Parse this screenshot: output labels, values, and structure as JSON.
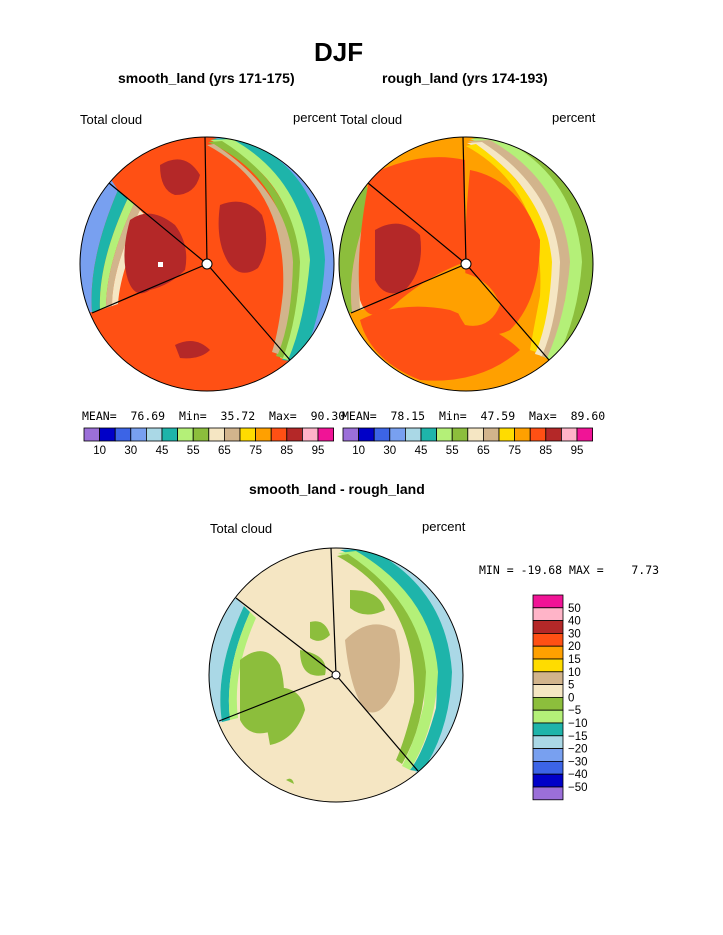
{
  "figure": {
    "title": "DJF",
    "panel_left": {
      "title": "smooth_land (yrs 171-175)",
      "left_label": "Total cloud",
      "right_label": "percent"
    },
    "panel_right": {
      "title": "rough_land (yrs 174-193)",
      "left_label": "Total cloud",
      "right_label": "percent"
    },
    "panel_diff": {
      "title": "smooth_land - rough_land",
      "left_label": "Total cloud",
      "right_label": "percent"
    }
  },
  "chart_data": [
    {
      "type": "heatmap",
      "name_key": "smooth_land",
      "projection": "polar stereographic",
      "stats": {
        "mean_label": "MEAN=",
        "mean": "76.69",
        "min_label": "Min=",
        "min": "35.72",
        "max_label": "Max=",
        "max": "90.30"
      },
      "colorbar": {
        "colors": [
          "#9b6fd9",
          "#0000c8",
          "#3c64e6",
          "#78a0f0",
          "#aad8e6",
          "#1eb4aa",
          "#b4f078",
          "#8cbe3c",
          "#f5e6c3",
          "#d2b48c",
          "#ffdc00",
          "#ffa000",
          "#ff5014",
          "#b42828",
          "#ffb4c8",
          "#f01496"
        ],
        "tick_labels": [
          "10",
          "30",
          "45",
          "55",
          "65",
          "75",
          "85",
          "95"
        ]
      }
    },
    {
      "type": "heatmap",
      "name_key": "rough_land",
      "projection": "polar stereographic",
      "stats": {
        "mean_label": "MEAN=",
        "mean": "78.15",
        "min_label": "Min=",
        "min": "47.59",
        "max_label": "Max=",
        "max": "89.60"
      },
      "colorbar": {
        "colors": [
          "#9b6fd9",
          "#0000c8",
          "#3c64e6",
          "#78a0f0",
          "#aad8e6",
          "#1eb4aa",
          "#b4f078",
          "#8cbe3c",
          "#f5e6c3",
          "#d2b48c",
          "#ffdc00",
          "#ffa000",
          "#ff5014",
          "#b42828",
          "#ffb4c8",
          "#f01496"
        ],
        "tick_labels": [
          "10",
          "30",
          "45",
          "55",
          "65",
          "75",
          "85",
          "95"
        ]
      }
    },
    {
      "type": "heatmap",
      "name_key": "difference",
      "projection": "polar stereographic",
      "stats": {
        "min_label": "MIN =",
        "min": "-19.68",
        "max_label": "MAX =",
        "max": "7.73"
      },
      "colorbar": {
        "colors": [
          "#f01496",
          "#ffb4c8",
          "#b42828",
          "#ff5014",
          "#ffa000",
          "#ffdc00",
          "#d2b48c",
          "#f5e6c3",
          "#8cbe3c",
          "#b4f078",
          "#1eb4aa",
          "#aad8e6",
          "#78a0f0",
          "#3c64e6",
          "#0000c8",
          "#9b6fd9"
        ],
        "tick_labels": [
          "50",
          "40",
          "30",
          "20",
          "15",
          "10",
          "5",
          "0",
          "−5",
          "−10",
          "−15",
          "−20",
          "−30",
          "−40",
          "−50"
        ]
      }
    }
  ]
}
